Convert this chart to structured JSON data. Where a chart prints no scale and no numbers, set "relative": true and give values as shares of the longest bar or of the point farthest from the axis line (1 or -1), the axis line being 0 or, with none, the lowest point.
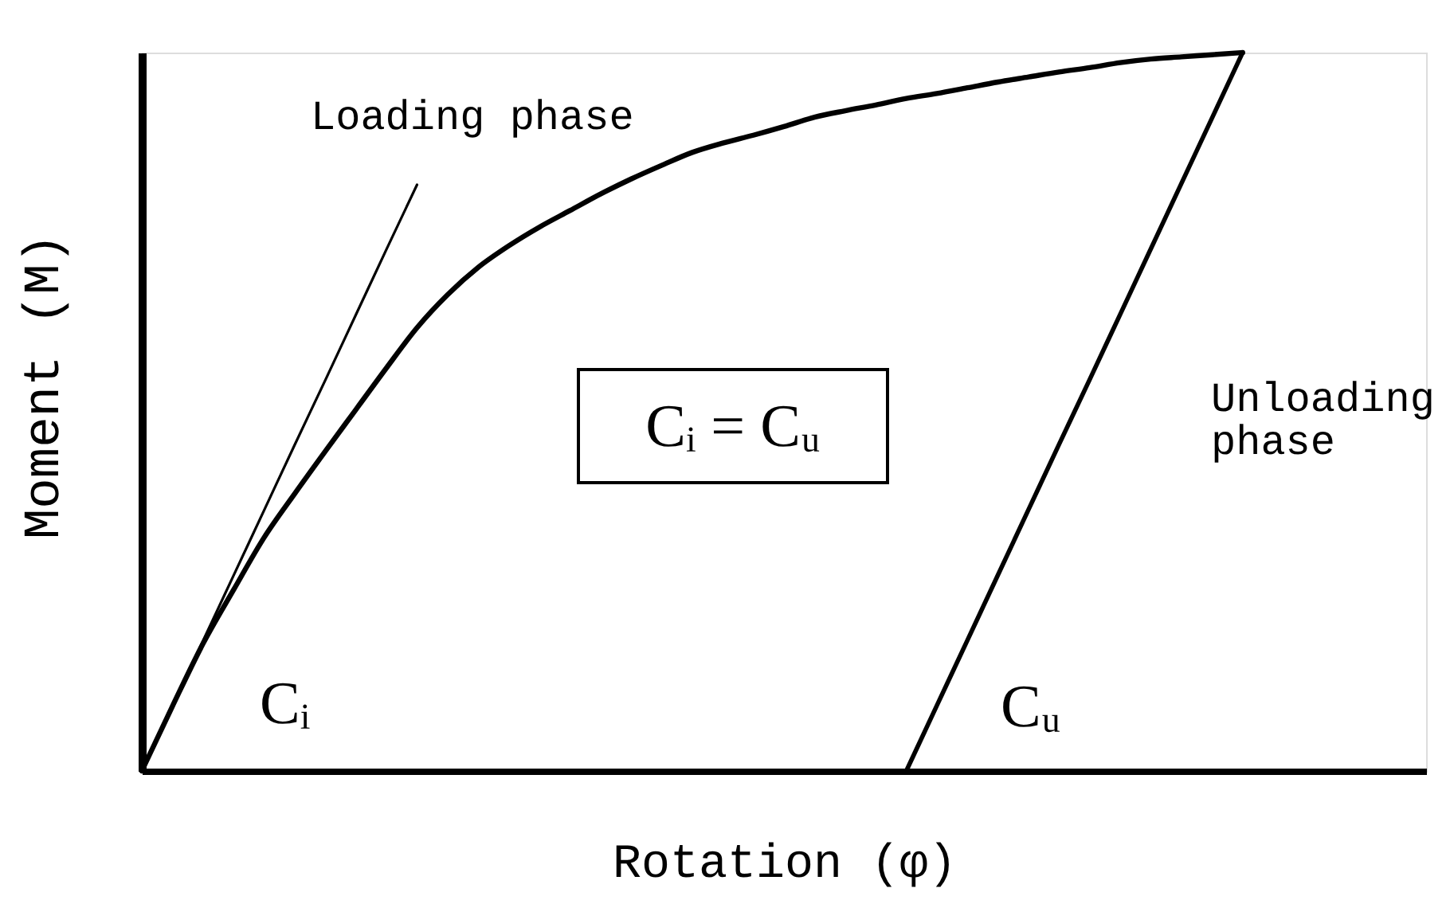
{
  "chart_data": {
    "type": "line",
    "relative": true,
    "tick_labels": false,
    "xlabel": "Rotation (φ)",
    "ylabel": "Moment (M)",
    "categories": [
      null,
      null,
      null,
      null,
      null,
      null,
      null,
      null,
      null,
      null,
      null,
      null,
      null,
      null,
      null,
      null,
      null,
      null,
      null,
      null,
      null,
      null,
      null,
      null,
      null,
      null,
      null,
      null,
      null,
      null,
      null,
      null,
      null,
      null,
      null,
      null,
      null,
      null,
      null,
      null,
      null,
      null,
      null
    ],
    "series": [
      {
        "color": "#000000",
        "values": [
          0,
          0.09,
          0.177,
          0.252,
          0.325,
          0.386,
          0.445,
          0.503,
          0.561,
          0.617,
          0.663,
          0.701,
          0.731,
          0.757,
          0.78,
          0.803,
          0.824,
          0.843,
          0.861,
          0.874,
          0.885,
          0.897,
          0.91,
          0.919,
          0.927,
          0.936,
          0.943,
          0.951,
          0.959,
          0.966,
          0.973,
          0.979,
          0.986,
          0.991,
          0.994,
          0.997,
          1,
          null,
          null,
          null,
          null,
          null,
          null
        ]
      },
      {
        "color": "#000000",
        "values": [
          0,
          0.091,
          0.181,
          0.272,
          0.363,
          0.454,
          0.544,
          0.635,
          0.726,
          0.816,
          null,
          null,
          null,
          null,
          null,
          null,
          null,
          null,
          null,
          null,
          null,
          null,
          null,
          null,
          null,
          null,
          null,
          null,
          null,
          null,
          null,
          null,
          null,
          null,
          null,
          null,
          null,
          null,
          null,
          null,
          null,
          null,
          null
        ]
      },
      {
        "color": "#000000",
        "values": [
          null,
          null,
          null,
          null,
          null,
          null,
          null,
          null,
          null,
          null,
          null,
          null,
          null,
          null,
          null,
          null,
          null,
          null,
          null,
          null,
          null,
          null,
          null,
          null,
          null,
          0,
          0.091,
          0.182,
          0.273,
          0.364,
          0.455,
          0.545,
          0.636,
          0.727,
          0.818,
          0.909,
          1,
          null,
          null,
          null,
          null,
          null,
          null
        ]
      }
    ],
    "annotations": [
      "Loading phase",
      "Unloading phase",
      "Cᵢ = Cᵤ",
      "Cᵢ",
      "Cᵤ"
    ]
  }
}
